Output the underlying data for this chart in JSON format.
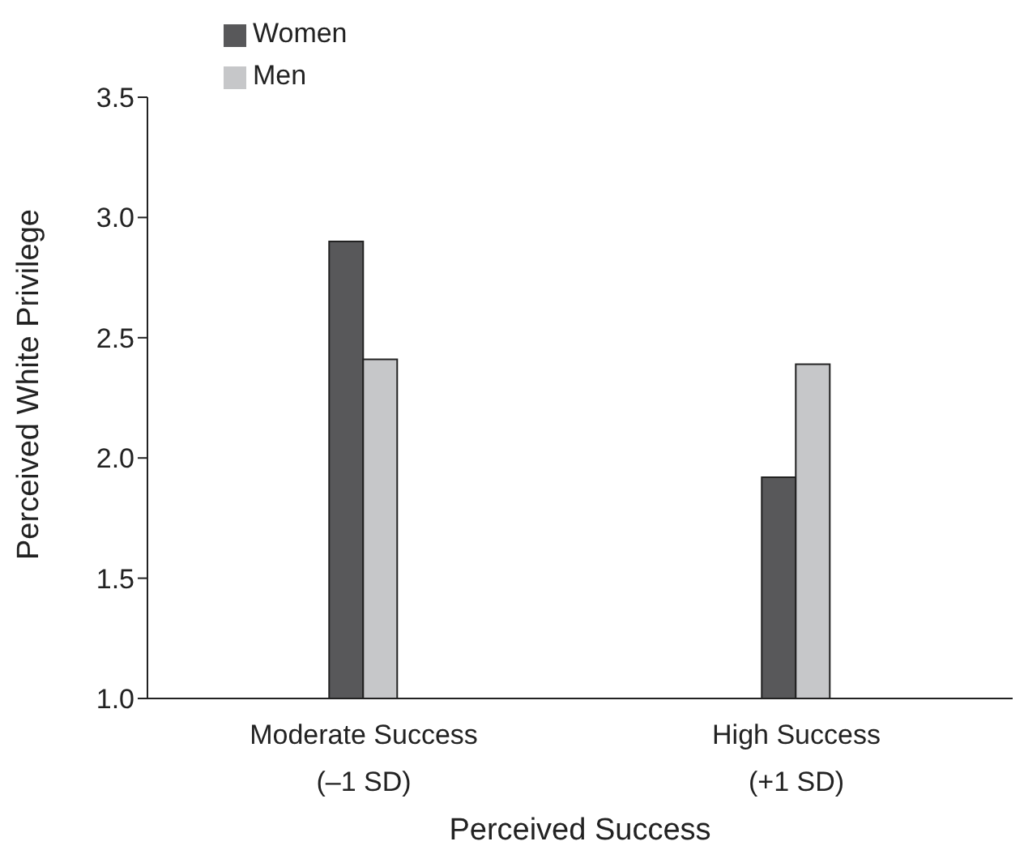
{
  "chart_data": {
    "type": "bar",
    "xlabel": "Perceived Success",
    "ylabel": "Perceived White Privilege",
    "categories": [
      "Moderate Success\n(–1 SD)",
      "High Success\n(+1 SD)"
    ],
    "series": [
      {
        "name": "Women",
        "color": "#58585a",
        "values": [
          2.9,
          1.92
        ]
      },
      {
        "name": "Men",
        "color": "#c6c7c9",
        "values": [
          2.41,
          2.39
        ]
      }
    ],
    "ylim": [
      1.0,
      3.5
    ],
    "yticks": [
      {
        "value": 1.0,
        "label": "1.0"
      },
      {
        "value": 1.5,
        "label": "1.5"
      },
      {
        "value": 2.0,
        "label": "2.0"
      },
      {
        "value": 2.5,
        "label": "2.5"
      },
      {
        "value": 3.0,
        "label": "3.0"
      },
      {
        "value": 3.5,
        "label": "3.5"
      }
    ],
    "grid": false,
    "legend": "top left"
  }
}
